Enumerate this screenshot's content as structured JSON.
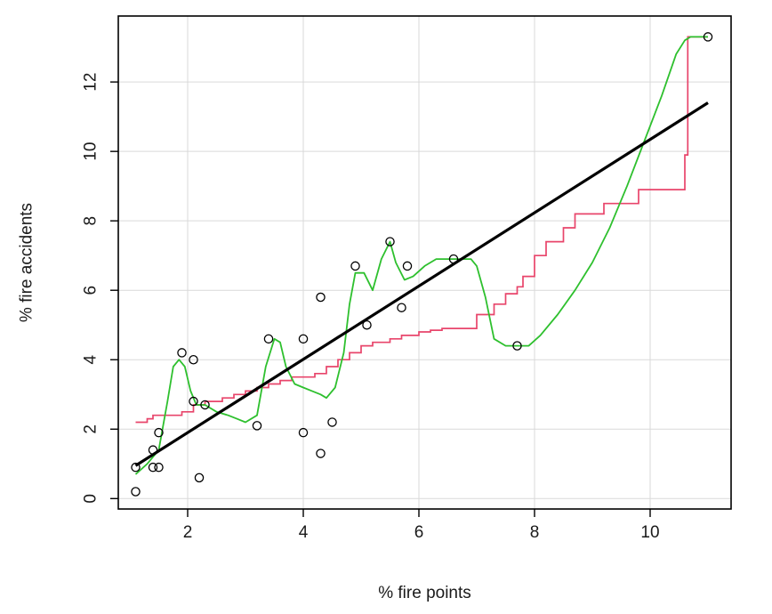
{
  "chart_data": {
    "type": "scatter",
    "title": "",
    "xlabel": "% fire points",
    "ylabel": "% fire accidents",
    "xlim": [
      0.8,
      11.4
    ],
    "ylim": [
      -0.3,
      13.9
    ],
    "x_ticks": [
      2,
      4,
      6,
      8,
      10
    ],
    "y_ticks": [
      0,
      2,
      4,
      6,
      8,
      10,
      12
    ],
    "grid": true,
    "legend": "none",
    "colors": {
      "points": "#000000",
      "regression": "#000000",
      "step": "#e8456b",
      "smooth": "#2ec02e",
      "grid": "#d9d9d9",
      "frame": "#000000"
    },
    "series": [
      {
        "kind": "points",
        "x": [
          1.1,
          1.1,
          1.4,
          1.4,
          1.5,
          1.5,
          1.9,
          2.1,
          2.1,
          2.2,
          2.3,
          3.2,
          3.4,
          4.0,
          4.0,
          4.3,
          4.3,
          4.5,
          4.9,
          5.1,
          5.5,
          5.7,
          5.8,
          6.6,
          7.7,
          11.0
        ],
        "y": [
          0.2,
          0.9,
          0.9,
          1.4,
          0.9,
          1.9,
          4.2,
          2.8,
          4.0,
          0.6,
          2.7,
          2.1,
          4.6,
          1.9,
          4.6,
          1.3,
          5.8,
          2.2,
          6.7,
          5.0,
          7.4,
          5.5,
          6.7,
          6.9,
          4.4,
          13.3
        ]
      },
      {
        "kind": "regression",
        "x": [
          1.1,
          11.0
        ],
        "y": [
          0.95,
          11.4
        ]
      },
      {
        "kind": "step",
        "x": [
          1.1,
          1.3,
          1.4,
          1.9,
          2.1,
          2.3,
          2.6,
          2.8,
          3.0,
          3.2,
          3.4,
          3.6,
          3.8,
          4.0,
          4.2,
          4.4,
          4.6,
          4.8,
          5.0,
          5.2,
          5.5,
          5.7,
          6.0,
          6.2,
          6.4,
          7.0,
          7.3,
          7.5,
          7.7,
          7.8,
          8.0,
          8.2,
          8.5,
          8.7,
          9.2,
          9.8,
          10.6,
          10.65,
          11.0
        ],
        "y": [
          2.2,
          2.3,
          2.4,
          2.5,
          2.7,
          2.8,
          2.9,
          3.0,
          3.1,
          3.2,
          3.3,
          3.4,
          3.5,
          3.5,
          3.6,
          3.8,
          4.0,
          4.2,
          4.4,
          4.5,
          4.6,
          4.7,
          4.8,
          4.85,
          4.9,
          5.3,
          5.6,
          5.9,
          6.1,
          6.4,
          7.0,
          7.4,
          7.8,
          8.2,
          8.5,
          8.9,
          9.9,
          13.3,
          13.3
        ]
      },
      {
        "kind": "smooth",
        "x": [
          1.1,
          1.3,
          1.5,
          1.65,
          1.75,
          1.85,
          1.95,
          2.05,
          2.15,
          2.3,
          2.5,
          2.7,
          2.85,
          3.0,
          3.2,
          3.35,
          3.5,
          3.6,
          3.7,
          3.85,
          4.0,
          4.15,
          4.3,
          4.4,
          4.55,
          4.7,
          4.8,
          4.9,
          5.05,
          5.2,
          5.35,
          5.5,
          5.6,
          5.75,
          5.9,
          6.1,
          6.3,
          6.6,
          6.9,
          7.0,
          7.15,
          7.3,
          7.5,
          7.7,
          7.9,
          8.1,
          8.4,
          8.7,
          9.0,
          9.3,
          9.6,
          9.9,
          10.2,
          10.45,
          10.6,
          10.7,
          11.0
        ],
        "y": [
          0.7,
          1.0,
          1.4,
          2.8,
          3.8,
          4.0,
          3.8,
          3.1,
          2.7,
          2.7,
          2.5,
          2.4,
          2.3,
          2.2,
          2.4,
          3.8,
          4.6,
          4.5,
          3.8,
          3.3,
          3.2,
          3.1,
          3.0,
          2.9,
          3.2,
          4.2,
          5.6,
          6.5,
          6.5,
          6.0,
          6.9,
          7.4,
          6.8,
          6.3,
          6.4,
          6.7,
          6.9,
          6.9,
          6.9,
          6.7,
          5.8,
          4.6,
          4.4,
          4.4,
          4.4,
          4.7,
          5.3,
          6.0,
          6.8,
          7.8,
          9.0,
          10.3,
          11.6,
          12.8,
          13.2,
          13.3,
          13.3
        ]
      }
    ]
  }
}
